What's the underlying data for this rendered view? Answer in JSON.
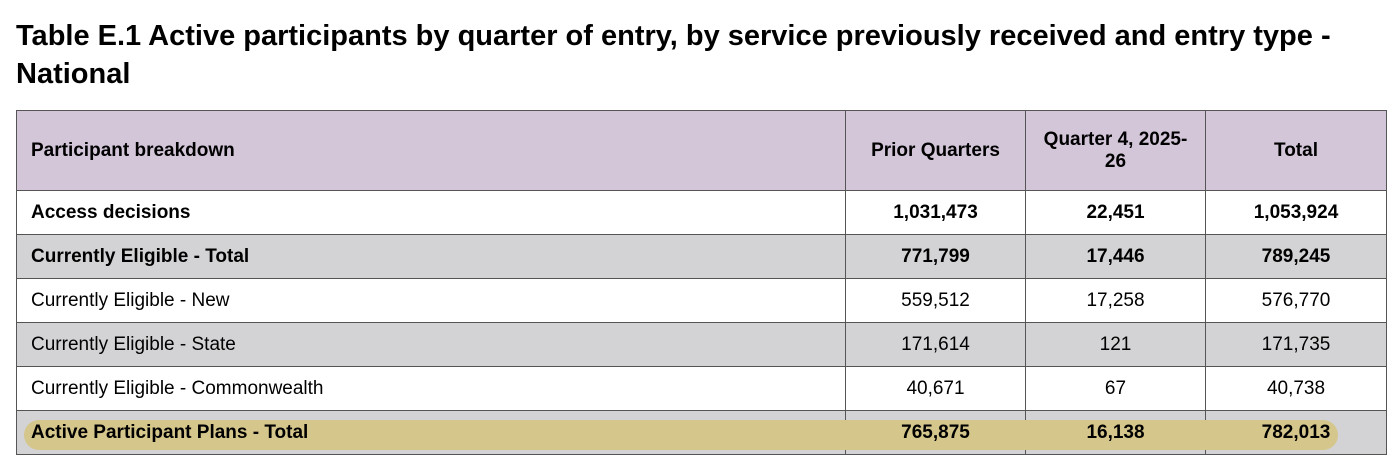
{
  "header": {
    "title": "Table E.1 Active participants by quarter of entry, by service previously received and entry type - National"
  },
  "table": {
    "columns": [
      "Participant breakdown",
      "Prior Quarters",
      "Quarter 4, 2025-26",
      "Total"
    ],
    "rows": [
      [
        "Access decisions",
        "1,031,473",
        "22,451",
        "1,053,924"
      ],
      [
        "Currently Eligible - Total",
        "771,799",
        "17,446",
        "789,245"
      ],
      [
        "Currently Eligible - New",
        "559,512",
        "17,258",
        "576,770"
      ],
      [
        "Currently Eligible - State",
        "171,614",
        "121",
        "171,735"
      ],
      [
        "Currently Eligible - Commonwealth",
        "40,671",
        "67",
        "40,738"
      ],
      [
        "Active Participant Plans - Total",
        "765,875",
        "16,138",
        "782,013"
      ]
    ]
  }
}
